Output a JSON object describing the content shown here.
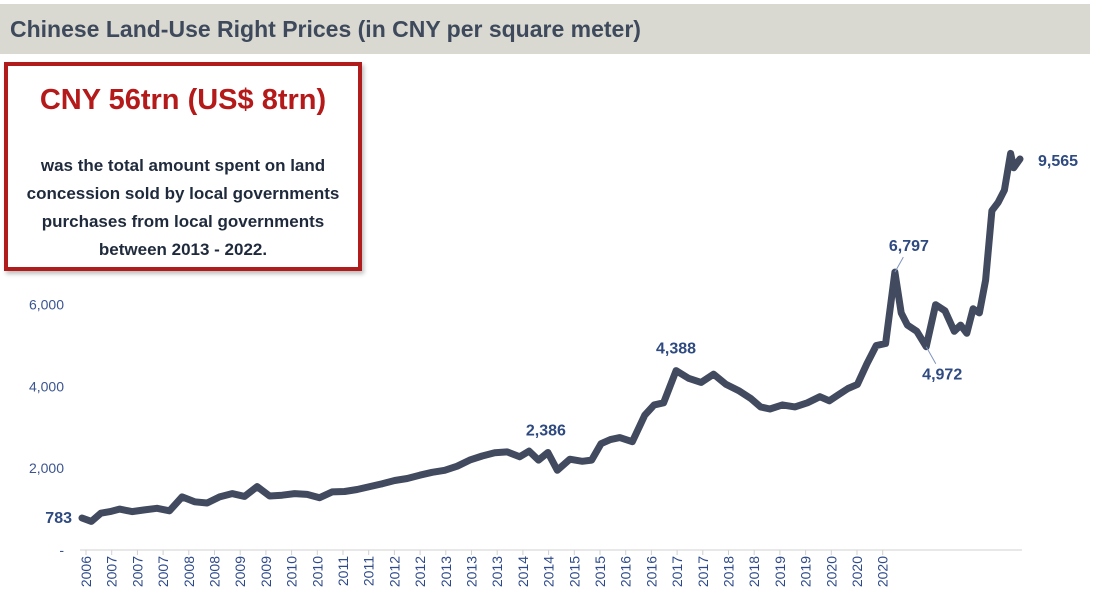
{
  "header": {
    "title": "Chinese Land-Use Right Prices (in CNY per square meter)"
  },
  "callout": {
    "headline": "CNY 56trn (US$ 8trn)",
    "lines": [
      "was the total amount spent on land",
      "concession sold by local governments",
      "purchases from local governments",
      "between 2013 - 2022."
    ]
  },
  "colors": {
    "line": "#414a5e",
    "accent": "#b51a1a",
    "title_bg": "#d9d9d2",
    "tick": "#3b5590",
    "annotation": "#2e4a80"
  },
  "chart_data": {
    "type": "line",
    "ylim": [
      0,
      10200
    ],
    "yticks": [
      {
        "value": 0,
        "label": "-"
      },
      {
        "value": 2000,
        "label": "2,000"
      },
      {
        "value": 4000,
        "label": "4,000"
      },
      {
        "value": 6000,
        "label": "6,000"
      }
    ],
    "xlim": [
      2006.0,
      2021.0
    ],
    "xtick_labels": [
      "2006",
      "2007",
      "2007",
      "2007",
      "2008",
      "2008",
      "2009",
      "2009",
      "2010",
      "2010",
      "2011",
      "2011",
      "2012",
      "2012",
      "2013",
      "2013",
      "2013",
      "2014",
      "2014",
      "2015",
      "2015",
      "2016",
      "2016",
      "2017",
      "2017",
      "2018",
      "2018",
      "2019",
      "2019",
      "2020",
      "2020",
      "2020"
    ],
    "grid": false,
    "series": [
      {
        "x": [
          2006.0,
          2006.15,
          2006.3,
          2006.45,
          2006.6,
          2006.8,
          2007.0,
          2007.2,
          2007.4,
          2007.6,
          2007.8,
          2008.0,
          2008.2,
          2008.4,
          2008.6,
          2008.8,
          2009.0,
          2009.2,
          2009.4,
          2009.6,
          2009.8,
          2010.0,
          2010.2,
          2010.4,
          2010.6,
          2010.8,
          2011.0,
          2011.2,
          2011.4,
          2011.6,
          2011.8,
          2012.0,
          2012.2,
          2012.4,
          2012.6,
          2012.8,
          2013.0,
          2013.15,
          2013.3,
          2013.45,
          2013.6,
          2013.8,
          2014.0,
          2014.15,
          2014.3,
          2014.45,
          2014.6,
          2014.8,
          2015.0,
          2015.15,
          2015.3,
          2015.5,
          2015.7,
          2015.9,
          2016.1,
          2016.3,
          2016.5,
          2016.7,
          2016.85,
          2017.0,
          2017.2,
          2017.4,
          2017.6,
          2017.8,
          2017.95,
          2018.1,
          2018.25,
          2018.4,
          2018.55,
          2018.7,
          2018.85,
          2019.0,
          2019.1,
          2019.2,
          2019.35,
          2019.5,
          2019.65,
          2019.8,
          2019.95,
          2020.05,
          2020.15,
          2020.25,
          2020.35,
          2020.45,
          2020.55,
          2020.65,
          2020.75,
          2020.85,
          2020.9,
          2021.0
        ],
        "values": [
          783,
          700,
          900,
          940,
          1000,
          940,
          980,
          1020,
          960,
          1300,
          1180,
          1150,
          1300,
          1380,
          1310,
          1550,
          1320,
          1340,
          1380,
          1360,
          1280,
          1420,
          1430,
          1480,
          1550,
          1620,
          1700,
          1750,
          1830,
          1900,
          1950,
          2050,
          2200,
          2300,
          2380,
          2400,
          2280,
          2420,
          2200,
          2386,
          1950,
          2220,
          2170,
          2200,
          2600,
          2700,
          2750,
          2650,
          3300,
          3550,
          3600,
          4388,
          4200,
          4100,
          4300,
          4050,
          3900,
          3700,
          3500,
          3450,
          3550,
          3500,
          3600,
          3750,
          3650,
          3800,
          3950,
          4050,
          4550,
          5000,
          5050,
          6797,
          5800,
          5500,
          5350,
          4972,
          6000,
          5850,
          5350,
          5500,
          5300,
          5900,
          5800,
          6600,
          8300,
          8500,
          8800,
          9700,
          9350,
          9565
        ]
      }
    ],
    "annotations": [
      {
        "label": "783",
        "x": 2006.0,
        "y": 783
      },
      {
        "label": "2,386",
        "x": 2013.45,
        "y": 2386
      },
      {
        "label": "4,388",
        "x": 2015.5,
        "y": 4388
      },
      {
        "label": "6,797",
        "x": 2019.0,
        "y": 6797
      },
      {
        "label": "4,972",
        "x": 2019.5,
        "y": 4972
      },
      {
        "label": "9,565",
        "x": 2021.0,
        "y": 9565
      }
    ]
  }
}
